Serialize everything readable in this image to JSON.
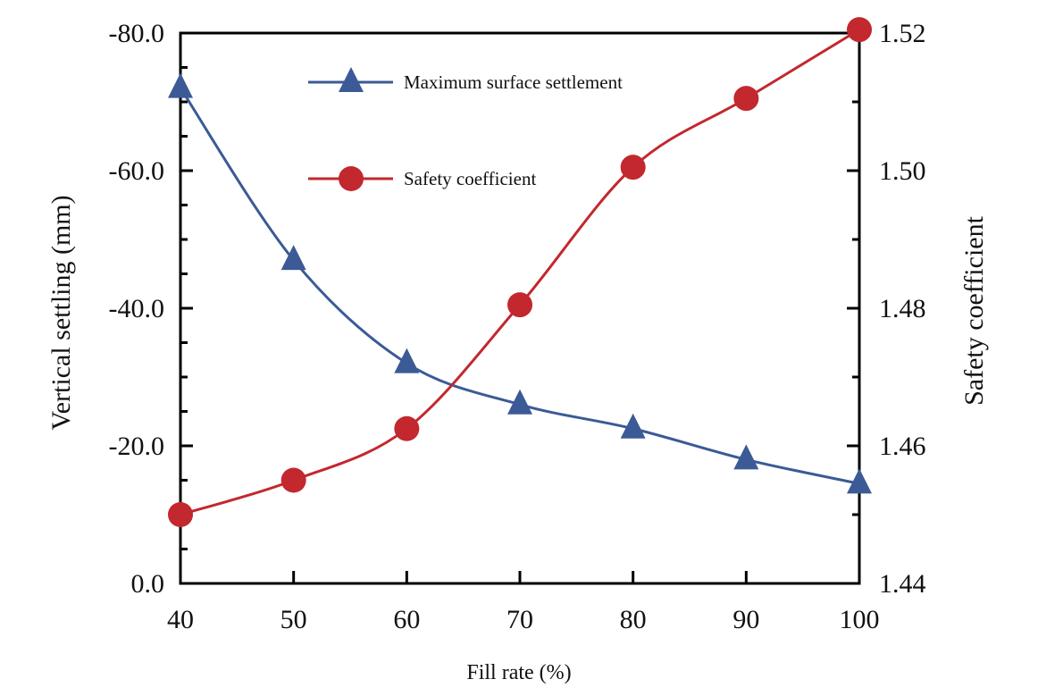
{
  "chart_data": {
    "type": "line",
    "xlabel": "Fill rate (%)",
    "ylabel_left": "Vertical settling (mm)",
    "ylabel_right": "Safety coefficient",
    "x": [
      40,
      50,
      60,
      70,
      80,
      90,
      100
    ],
    "xlim": [
      40,
      100
    ],
    "x_ticks": [
      "40",
      "50",
      "60",
      "70",
      "80",
      "90",
      "100"
    ],
    "y_left_lim": [
      0,
      -80
    ],
    "y_left_ticks": [
      "0.0",
      "-20.0",
      "-40.0",
      "-60.0",
      "-80.0"
    ],
    "y_right_lim": [
      1.44,
      1.52
    ],
    "y_right_ticks": [
      "1.44",
      "1.46",
      "1.48",
      "1.50",
      "1.52"
    ],
    "grid": false,
    "legend_position": "top-center",
    "series": [
      {
        "name": "Maximum surface settlement",
        "axis": "left",
        "marker": "triangle",
        "color": "#3b5a96",
        "values": [
          -72.0,
          -47.0,
          -32.0,
          -26.0,
          -22.5,
          -18.0,
          -14.5
        ]
      },
      {
        "name": "Safety coefficient",
        "axis": "right",
        "marker": "circle",
        "color": "#c2282e",
        "values": [
          1.45,
          1.455,
          1.4625,
          1.4805,
          1.5005,
          1.5105,
          1.5205
        ]
      }
    ]
  }
}
